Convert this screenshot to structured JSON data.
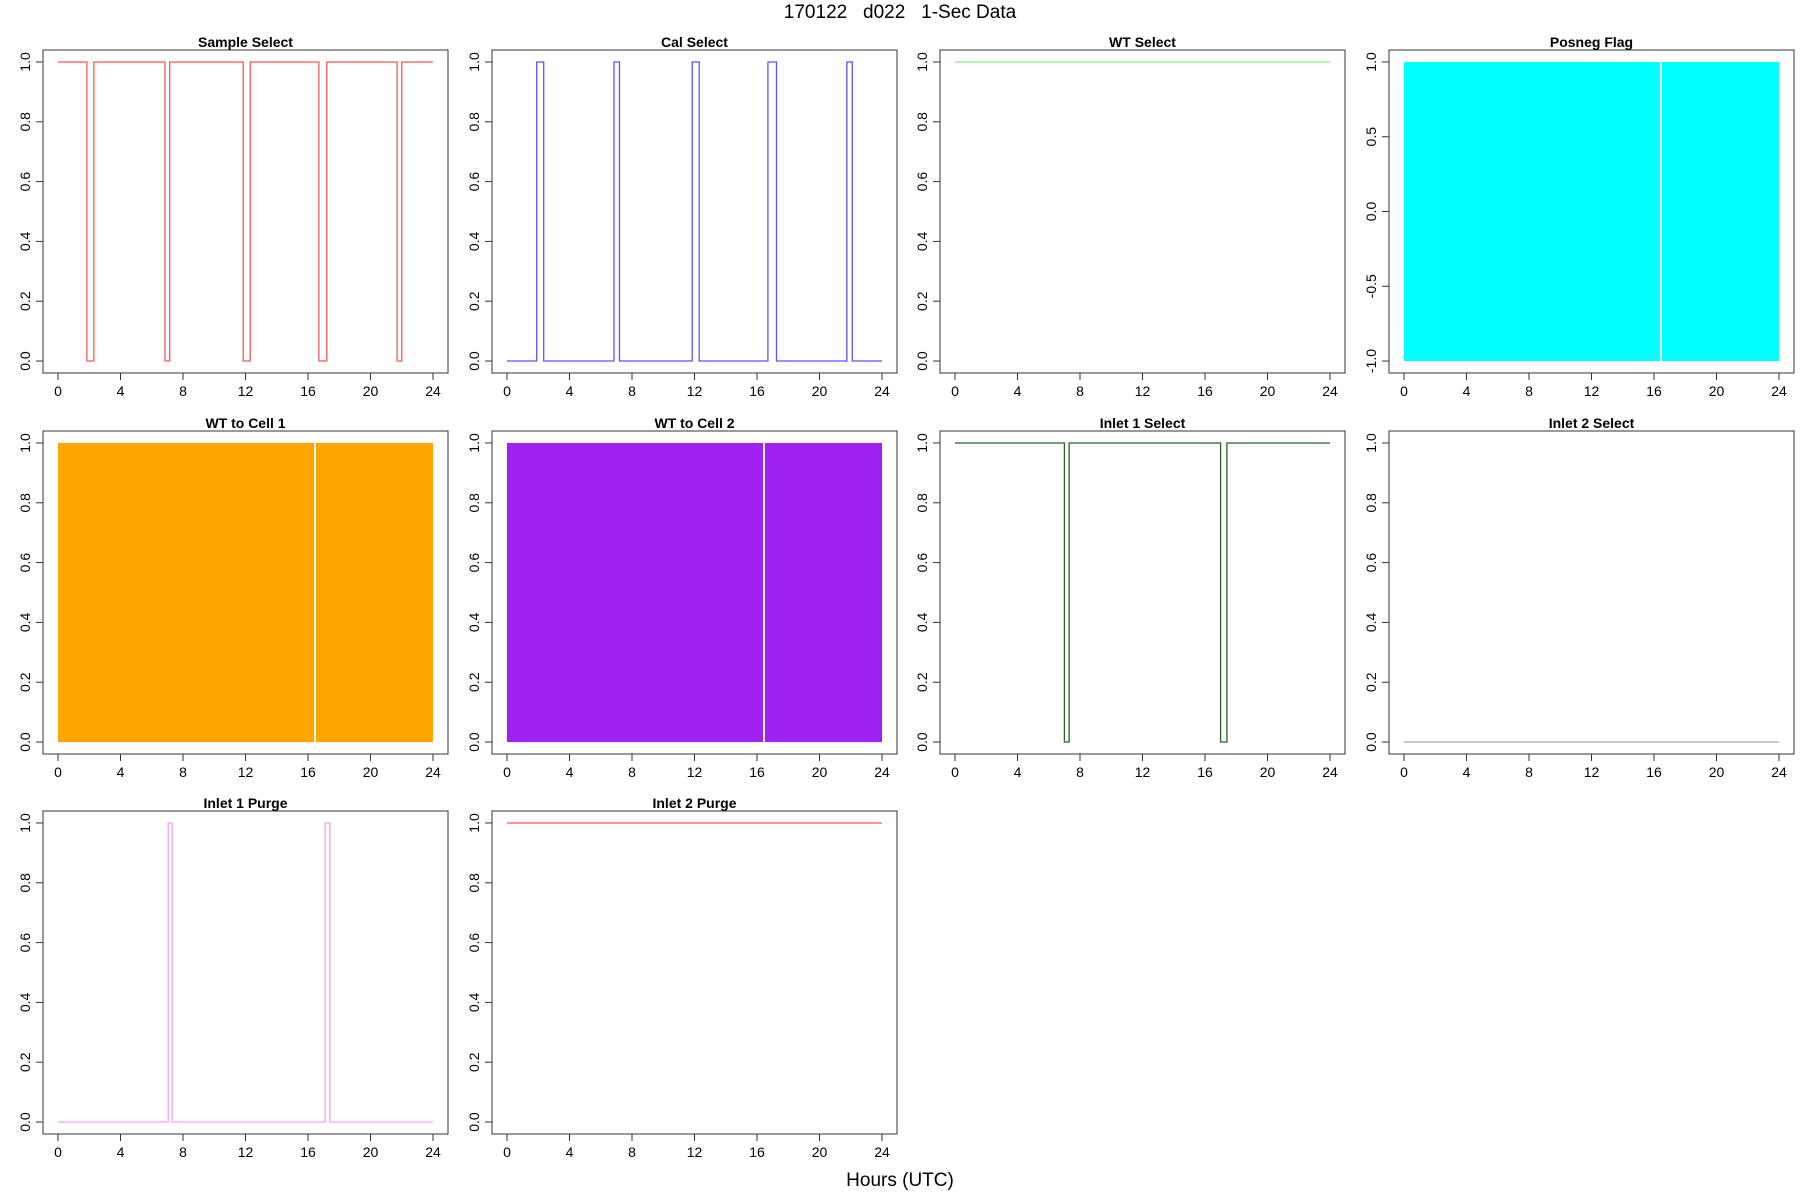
{
  "title": "170122   d022   1-Sec Data",
  "xlabel": "Hours (UTC)",
  "chart_data": [
    {
      "type": "line",
      "title": "Sample Select",
      "color": "#ff5555",
      "xlim": [
        0,
        24
      ],
      "ylim": [
        0,
        1
      ],
      "xticks": [
        0,
        4,
        8,
        12,
        16,
        20,
        24
      ],
      "yticks": [
        "0.0",
        "0.2",
        "0.4",
        "0.6",
        "0.8",
        "1.0"
      ],
      "base": 1,
      "pulse_value": 0,
      "pulses": [
        [
          1.85,
          2.3
        ],
        [
          6.85,
          7.15
        ],
        [
          11.85,
          12.3
        ],
        [
          16.7,
          17.2
        ],
        [
          21.7,
          22.0
        ]
      ]
    },
    {
      "type": "line",
      "title": "Cal Select",
      "color": "#5555ff",
      "xlim": [
        0,
        24
      ],
      "ylim": [
        0,
        1
      ],
      "xticks": [
        0,
        4,
        8,
        12,
        16,
        20,
        24
      ],
      "yticks": [
        "0.0",
        "0.2",
        "0.4",
        "0.6",
        "0.8",
        "1.0"
      ],
      "base": 0,
      "pulse_value": 1,
      "pulses": [
        [
          1.9,
          2.35
        ],
        [
          6.85,
          7.2
        ],
        [
          11.85,
          12.3
        ],
        [
          16.7,
          17.25
        ],
        [
          21.75,
          22.1
        ]
      ]
    },
    {
      "type": "line",
      "title": "WT Select",
      "color": "#88ee88",
      "xlim": [
        0,
        24
      ],
      "ylim": [
        0,
        1
      ],
      "xticks": [
        0,
        4,
        8,
        12,
        16,
        20,
        24
      ],
      "yticks": [
        "0.0",
        "0.2",
        "0.4",
        "0.6",
        "0.8",
        "1.0"
      ],
      "base": 1,
      "pulse_value": 0,
      "pulses": []
    },
    {
      "type": "area",
      "title": "Posneg Flag",
      "color": "#00ffff",
      "xlim": [
        0,
        24
      ],
      "ylim": [
        -1,
        1
      ],
      "xticks": [
        0,
        4,
        8,
        12,
        16,
        20,
        24
      ],
      "yticks": [
        "-1.0",
        "-0.5",
        "0.0",
        "0.5",
        "1.0"
      ],
      "band": [
        -1,
        1
      ],
      "gaps": [
        16.45
      ]
    },
    {
      "type": "area",
      "title": "WT to Cell 1",
      "color": "#ffa500",
      "xlim": [
        0,
        24
      ],
      "ylim": [
        0,
        1
      ],
      "xticks": [
        0,
        4,
        8,
        12,
        16,
        20,
        24
      ],
      "yticks": [
        "0.0",
        "0.2",
        "0.4",
        "0.6",
        "0.8",
        "1.0"
      ],
      "band": [
        0,
        1
      ],
      "gaps": [
        16.45
      ]
    },
    {
      "type": "area",
      "title": "WT to Cell 2",
      "color": "#a020f0",
      "xlim": [
        0,
        24
      ],
      "ylim": [
        0,
        1
      ],
      "xticks": [
        0,
        4,
        8,
        12,
        16,
        20,
        24
      ],
      "yticks": [
        "0.0",
        "0.2",
        "0.4",
        "0.6",
        "0.8",
        "1.0"
      ],
      "band": [
        0,
        1
      ],
      "gaps": [
        16.45
      ]
    },
    {
      "type": "line",
      "title": "Inlet 1 Select",
      "color": "#226622",
      "xlim": [
        0,
        24
      ],
      "ylim": [
        0,
        1
      ],
      "xticks": [
        0,
        4,
        8,
        12,
        16,
        20,
        24
      ],
      "yticks": [
        "0.0",
        "0.2",
        "0.4",
        "0.6",
        "0.8",
        "1.0"
      ],
      "base": 1,
      "pulse_value": 0,
      "pulses": [
        [
          7.0,
          7.3
        ],
        [
          17.0,
          17.4
        ]
      ]
    },
    {
      "type": "line",
      "title": "Inlet 2 Select",
      "color": "#aaaaaa",
      "xlim": [
        0,
        24
      ],
      "ylim": [
        0,
        1
      ],
      "xticks": [
        0,
        4,
        8,
        12,
        16,
        20,
        24
      ],
      "yticks": [
        "0.0",
        "0.2",
        "0.4",
        "0.6",
        "0.8",
        "1.0"
      ],
      "base": 0,
      "pulse_value": 1,
      "pulses": []
    },
    {
      "type": "line",
      "title": "Inlet 1 Purge",
      "color": "#f5a0f5",
      "xlim": [
        0,
        24
      ],
      "ylim": [
        0,
        1
      ],
      "xticks": [
        0,
        4,
        8,
        12,
        16,
        20,
        24
      ],
      "yticks": [
        "0.0",
        "0.2",
        "0.4",
        "0.6",
        "0.8",
        "1.0"
      ],
      "base": 0,
      "pulse_value": 1,
      "pulses": [
        [
          7.05,
          7.3
        ],
        [
          17.1,
          17.4
        ]
      ]
    },
    {
      "type": "line",
      "title": "Inlet 2 Purge",
      "color": "#ff5555",
      "xlim": [
        0,
        24
      ],
      "ylim": [
        0,
        1
      ],
      "xticks": [
        0,
        4,
        8,
        12,
        16,
        20,
        24
      ],
      "yticks": [
        "0.0",
        "0.2",
        "0.4",
        "0.6",
        "0.8",
        "1.0"
      ],
      "base": 1,
      "pulse_value": 0,
      "pulses": []
    }
  ]
}
